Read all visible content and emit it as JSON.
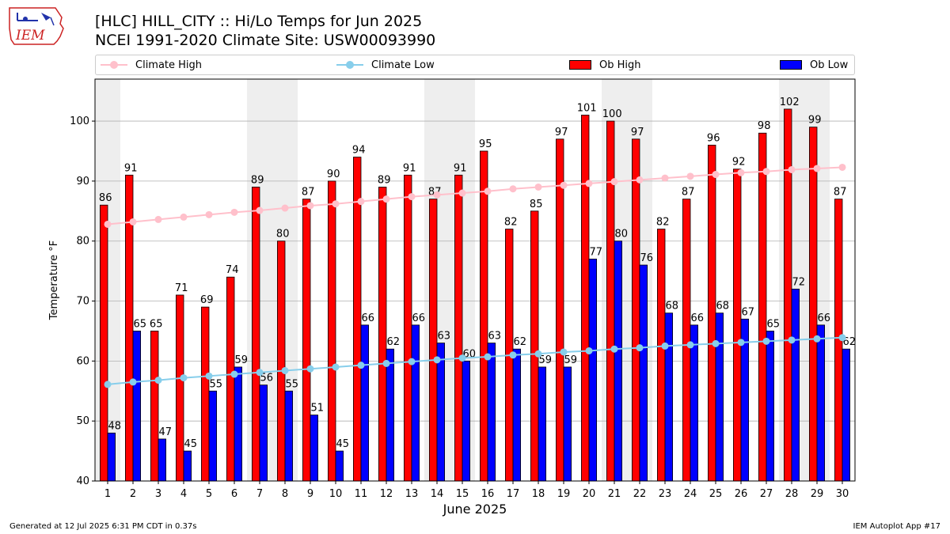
{
  "title_line1": "[HLC] HILL_CITY :: Hi/Lo Temps for Jun 2025",
  "title_line2": "NCEI 1991-2020 Climate Site: USW00093990",
  "logo_text": "IEM",
  "legend": {
    "climate_high": "Climate High",
    "climate_low": "Climate Low",
    "ob_high": "Ob High",
    "ob_low": "Ob Low"
  },
  "footer_left": "Generated at 12 Jul 2025 6:31 PM CDT in 0.37s",
  "footer_right": "IEM Autoplot App #17",
  "colors": {
    "ob_high": "#ff0000",
    "ob_low": "#0000ff",
    "climate_high": "#ffc0cb",
    "climate_low": "#87ceeb",
    "weekend_shade": "#eeeeee"
  },
  "chart_data": {
    "type": "bar",
    "xlabel": "June 2025",
    "ylabel": "Temperature °F",
    "ylim": [
      40,
      107
    ],
    "yticks": [
      40,
      50,
      60,
      70,
      80,
      90,
      100
    ],
    "grid": "horizontal",
    "legend_position": "top",
    "categories": [
      1,
      2,
      3,
      4,
      5,
      6,
      7,
      8,
      9,
      10,
      11,
      12,
      13,
      14,
      15,
      16,
      17,
      18,
      19,
      20,
      21,
      22,
      23,
      24,
      25,
      26,
      27,
      28,
      29,
      30
    ],
    "shaded_days": [
      1,
      7,
      8,
      14,
      15,
      21,
      22,
      28,
      29
    ],
    "series": [
      {
        "name": "Ob High",
        "type": "bar",
        "values": [
          86,
          91,
          65,
          71,
          69,
          74,
          89,
          80,
          87,
          90,
          94,
          89,
          91,
          87,
          91,
          95,
          82,
          85,
          97,
          101,
          100,
          97,
          82,
          87,
          96,
          92,
          98,
          102,
          99,
          87
        ]
      },
      {
        "name": "Ob Low",
        "type": "bar",
        "values": [
          48,
          65,
          47,
          45,
          55,
          59,
          56,
          55,
          51,
          45,
          66,
          62,
          66,
          63,
          60,
          63,
          62,
          59,
          59,
          77,
          80,
          76,
          68,
          66,
          68,
          67,
          65,
          72,
          66,
          62
        ]
      },
      {
        "name": "Climate High",
        "type": "line",
        "values": [
          82.8,
          83.2,
          83.6,
          84.0,
          84.4,
          84.8,
          85.1,
          85.5,
          85.9,
          86.2,
          86.6,
          87.0,
          87.4,
          87.7,
          88.0,
          88.3,
          88.7,
          89.0,
          89.3,
          89.6,
          89.9,
          90.2,
          90.5,
          90.8,
          91.1,
          91.4,
          91.6,
          91.9,
          92.1,
          92.3
        ]
      },
      {
        "name": "Climate Low",
        "type": "line",
        "values": [
          56.1,
          56.5,
          56.8,
          57.2,
          57.5,
          57.8,
          58.1,
          58.4,
          58.7,
          59.0,
          59.3,
          59.6,
          59.9,
          60.2,
          60.5,
          60.7,
          61.0,
          61.2,
          61.5,
          61.7,
          62.0,
          62.2,
          62.5,
          62.7,
          62.9,
          63.1,
          63.3,
          63.5,
          63.7,
          63.9
        ]
      }
    ]
  }
}
